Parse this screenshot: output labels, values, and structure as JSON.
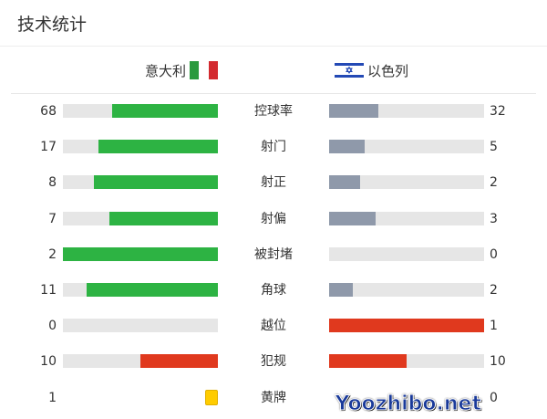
{
  "title": "技术统计",
  "home": {
    "name": "意大利",
    "flag": "italy-flag"
  },
  "away": {
    "name": "以色列",
    "flag": "israel-flag"
  },
  "colors": {
    "green": "#2db343",
    "grey": "#8f99aa",
    "red": "#e0391e",
    "track": "#e6e6e6",
    "yellow": "#ffcc00"
  },
  "stats": [
    {
      "label": "控球率",
      "home": "68",
      "away": "32",
      "home_color": "#2db343",
      "away_color": "#8f99aa"
    },
    {
      "label": "射门",
      "home": "17",
      "away": "5",
      "home_color": "#2db343",
      "away_color": "#8f99aa"
    },
    {
      "label": "射正",
      "home": "8",
      "away": "2",
      "home_color": "#2db343",
      "away_color": "#8f99aa"
    },
    {
      "label": "射偏",
      "home": "7",
      "away": "3",
      "home_color": "#2db343",
      "away_color": "#8f99aa"
    },
    {
      "label": "被封堵",
      "home": "2",
      "away": "0",
      "home_color": "#2db343",
      "away_color": "#8f99aa"
    },
    {
      "label": "角球",
      "home": "11",
      "away": "2",
      "home_color": "#2db343",
      "away_color": "#8f99aa"
    },
    {
      "label": "越位",
      "home": "0",
      "away": "1",
      "home_color": "#e0391e",
      "away_color": "#e0391e"
    },
    {
      "label": "犯规",
      "home": "10",
      "away": "10",
      "home_color": "#e0391e",
      "away_color": "#e0391e"
    },
    {
      "label": "黄牌",
      "home": "1",
      "away": "0",
      "card": true
    }
  ],
  "watermark": "Yoozhibo.net"
}
